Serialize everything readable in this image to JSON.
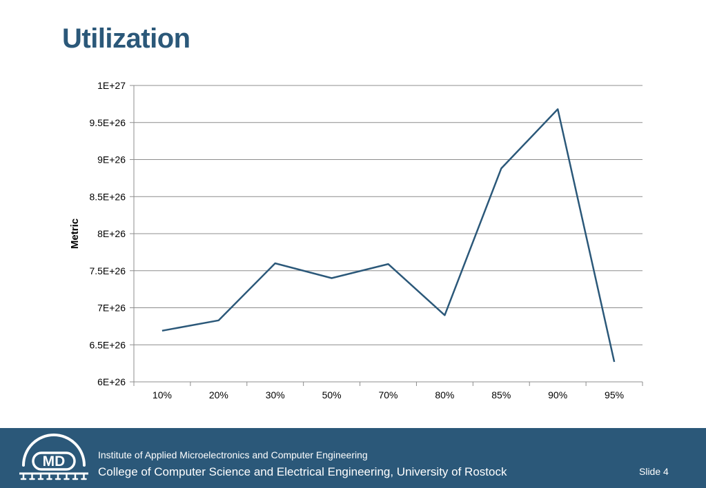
{
  "page": {
    "title": "Utilization",
    "slide_label": "Slide 4"
  },
  "footer": {
    "logo_text": "MD",
    "institute": "Institute of Applied Microelectronics and Computer Engineering",
    "college": "College of Computer Science and Electrical Engineering, University of Rostock"
  },
  "colors": {
    "title": "#2b5879",
    "footer_bg": "#2b5879",
    "series_line": "#2b5879",
    "gridline": "#8c8c8c",
    "white": "#ffffff"
  },
  "chart_data": {
    "type": "line",
    "title": "",
    "xlabel": "",
    "ylabel": "Metric",
    "categories": [
      "10%",
      "20%",
      "30%",
      "50%",
      "70%",
      "80%",
      "85%",
      "90%",
      "95%"
    ],
    "series": [
      {
        "values": [
          6.69e+26,
          6.83e+26,
          7.6e+26,
          7.4e+26,
          7.59e+26,
          6.9e+26,
          8.88e+26,
          9.68e+26,
          6.27e+26
        ]
      }
    ],
    "ylim": [
      6e+26,
      1e+27
    ],
    "y_ticks": [
      {
        "value": 6e+26,
        "label": "6E+26"
      },
      {
        "value": 6.5e+26,
        "label": "6.5E+26"
      },
      {
        "value": 7e+26,
        "label": "7E+26"
      },
      {
        "value": 7.5e+26,
        "label": "7.5E+26"
      },
      {
        "value": 8e+26,
        "label": "8E+26"
      },
      {
        "value": 8.5e+26,
        "label": "8.5E+26"
      },
      {
        "value": 9e+26,
        "label": "9E+26"
      },
      {
        "value": 9.5e+26,
        "label": "9.5E+26"
      },
      {
        "value": 1e+27,
        "label": "1E+27"
      }
    ],
    "grid": true,
    "legend": "none"
  }
}
